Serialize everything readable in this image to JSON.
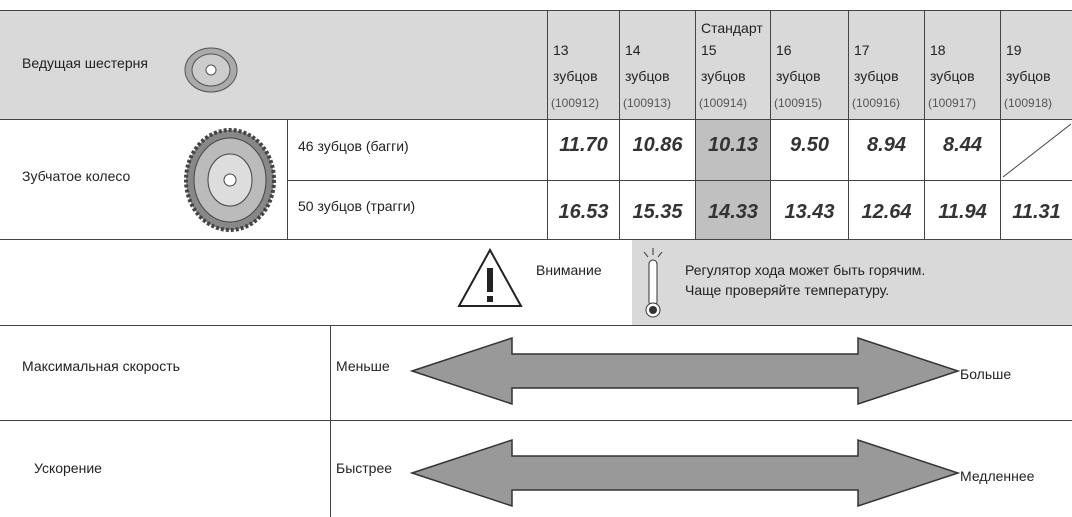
{
  "header": {
    "pinion_label": "Ведущая шестерня",
    "standard_label": "Стандарт",
    "columns": [
      {
        "teeth": "13",
        "unit": "зубцов",
        "code": "(100912)"
      },
      {
        "teeth": "14",
        "unit": "зубцов",
        "code": "(100913)"
      },
      {
        "teeth": "15",
        "unit": "зубцов",
        "code": "(100914)"
      },
      {
        "teeth": "16",
        "unit": "зубцов",
        "code": "(100915)"
      },
      {
        "teeth": "17",
        "unit": "зубцов",
        "code": "(100916)"
      },
      {
        "teeth": "18",
        "unit": "зубцов",
        "code": "(100917)"
      },
      {
        "teeth": "19",
        "unit": "зубцов",
        "code": "(100918)"
      }
    ]
  },
  "spur": {
    "label": "Зубчатое колесо",
    "rows": [
      {
        "label": "46 зубцов (багги)",
        "values": [
          "11.70",
          "10.86",
          "10.13",
          "9.50",
          "8.94",
          "8.44",
          null
        ]
      },
      {
        "label": "50 зубцов (трагги)",
        "values": [
          "16.53",
          "15.35",
          "14.33",
          "13.43",
          "12.64",
          "11.94",
          "11.31"
        ]
      }
    ]
  },
  "warning": {
    "label": "Внимание",
    "lines": [
      "Регулятор хода может быть горячим.",
      "Чаще проверяйте температуру."
    ]
  },
  "effects": [
    {
      "label": "Максимальная скорость",
      "left": "Меньше",
      "right": "Больше"
    },
    {
      "label": "Ускорение",
      "left": "Быстрее",
      "right": "Медленнее"
    }
  ]
}
